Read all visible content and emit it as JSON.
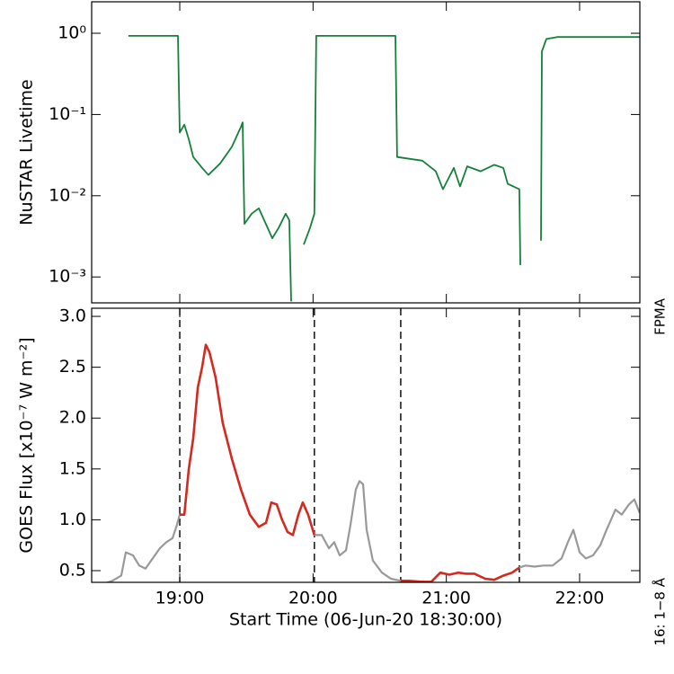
{
  "chart_data": [
    {
      "type": "line",
      "log_y": true,
      "ylabel": "NuSTAR Livetime",
      "xlim": [
        18.339,
        22.452
      ],
      "xticks": [
        19,
        20,
        21,
        22
      ],
      "ylim": [
        0.00048,
        2.44
      ],
      "yticks": [
        {
          "value": 1,
          "label": "10⁰"
        },
        {
          "value": 0.1,
          "label": "10⁻¹"
        },
        {
          "value": 0.01,
          "label": "10⁻²"
        },
        {
          "value": 0.001,
          "label": "10⁻³"
        }
      ],
      "series": [
        {
          "name": "FPMA",
          "color": "#16803a",
          "x": [
            18.615,
            18.986,
            19.0,
            19.034,
            19.067,
            19.101,
            19.168,
            19.215,
            19.303,
            19.391,
            19.458,
            19.472,
            19.485,
            19.539,
            19.593,
            19.66,
            19.694,
            19.741,
            19.795,
            19.822,
            19.836,
            19.876,
            19.93,
            19.977,
            20.01,
            20.024,
            20.618,
            20.631,
            20.82,
            20.921,
            20.975,
            21.056,
            21.103,
            21.157,
            21.258,
            21.359,
            21.427,
            21.461,
            21.548,
            21.555,
            21.629,
            21.71,
            21.717,
            21.751,
            21.832,
            22.45
          ],
          "values": [
            0.93,
            0.93,
            0.06,
            0.075,
            0.05,
            0.03,
            0.022,
            0.018,
            0.025,
            0.04,
            0.07,
            0.08,
            0.0045,
            0.006,
            0.007,
            0.004,
            0.003,
            0.004,
            0.006,
            0.005,
            0.0005,
            null,
            0.0025,
            0.004,
            0.006,
            0.93,
            0.93,
            0.03,
            0.027,
            0.02,
            0.012,
            0.022,
            0.013,
            0.023,
            0.02,
            0.024,
            0.022,
            0.014,
            0.012,
            0.0014,
            null,
            0.0028,
            0.6,
            0.85,
            0.9,
            0.9
          ]
        }
      ]
    },
    {
      "type": "line",
      "ylabel": "GOES Flux [x10⁻⁷ W m⁻²]",
      "xlabel": "Start Time (06-Jun-20 18:30:00)",
      "xlim": [
        18.339,
        22.452
      ],
      "xticks": [
        {
          "value": 19,
          "label": "19:00"
        },
        {
          "value": 20,
          "label": "20:00"
        },
        {
          "value": 21,
          "label": "21:00"
        },
        {
          "value": 22,
          "label": "22:00"
        }
      ],
      "ylim": [
        0.385,
        3.08
      ],
      "yticks": [
        0.5,
        {
          "value": 1,
          "label": "1.0"
        },
        1.5,
        {
          "value": 2,
          "label": "2.0"
        },
        2.5,
        {
          "value": 3,
          "label": "3.0"
        }
      ],
      "vlines": [
        19.0,
        20.01,
        20.658,
        21.548
      ],
      "series": [
        {
          "color": "#999999",
          "x": [
            18.339,
            18.427,
            18.494,
            18.561,
            18.595,
            18.649,
            18.696,
            18.743,
            18.797,
            18.851,
            18.899,
            18.946,
            18.979,
            19.0,
            19.034,
            19.068,
            19.101,
            19.135,
            19.168,
            19.195,
            19.222,
            19.269,
            19.323,
            19.391,
            19.458,
            19.526,
            19.593,
            19.647,
            19.687,
            19.728,
            19.768,
            19.809,
            19.849,
            19.89,
            19.923,
            19.963,
            20.01,
            20.065,
            20.119,
            20.159,
            20.2,
            20.247,
            20.281,
            20.321,
            20.348,
            20.375,
            20.402,
            20.449,
            20.517,
            20.584,
            20.658,
            20.719,
            20.82,
            20.887,
            20.955,
            21.022,
            21.09,
            21.144,
            21.211,
            21.292,
            21.359,
            21.427,
            21.494,
            21.548,
            21.595,
            21.662,
            21.73,
            21.798,
            21.865,
            21.912,
            21.953,
            22.0,
            22.047,
            22.101,
            22.155,
            22.202,
            22.269,
            22.316,
            22.37,
            22.411,
            22.45
          ],
          "values": [
            0.37,
            0.37,
            0.4,
            0.45,
            0.68,
            0.65,
            0.55,
            0.52,
            0.62,
            0.72,
            0.78,
            0.82,
            0.95,
            1.05,
            1.05,
            1.5,
            1.8,
            2.3,
            2.5,
            2.72,
            2.65,
            2.4,
            1.95,
            1.6,
            1.3,
            1.05,
            0.93,
            0.97,
            1.17,
            1.15,
            1.0,
            0.88,
            0.85,
            1.05,
            1.17,
            1.05,
            0.85,
            0.85,
            0.72,
            0.78,
            0.65,
            0.7,
            0.95,
            1.3,
            1.38,
            1.35,
            0.9,
            0.6,
            0.48,
            0.42,
            0.4,
            0.4,
            0.39,
            0.39,
            0.48,
            0.46,
            0.48,
            0.47,
            0.47,
            0.42,
            0.41,
            0.45,
            0.48,
            0.53,
            0.55,
            0.54,
            0.55,
            0.55,
            0.62,
            0.78,
            0.9,
            0.68,
            0.62,
            0.65,
            0.75,
            0.9,
            1.1,
            1.05,
            1.15,
            1.2,
            1.07
          ]
        },
        {
          "name": "16: 1−8 Å",
          "color": "#d42a20",
          "x": [
            19.0,
            19.034,
            19.068,
            19.101,
            19.135,
            19.168,
            19.195,
            19.222,
            19.269,
            19.323,
            19.391,
            19.458,
            19.526,
            19.593,
            19.647,
            19.687,
            19.728,
            19.768,
            19.809,
            19.849,
            19.89,
            19.923,
            19.963,
            20.01,
            null,
            20.658,
            20.719,
            20.82,
            20.887,
            20.955,
            21.022,
            21.09,
            21.144,
            21.211,
            21.292,
            21.359,
            21.427,
            21.494,
            21.548
          ],
          "values": [
            1.05,
            1.05,
            1.5,
            1.8,
            2.3,
            2.5,
            2.72,
            2.65,
            2.4,
            1.95,
            1.6,
            1.3,
            1.05,
            0.93,
            0.97,
            1.17,
            1.15,
            1.0,
            0.88,
            0.85,
            1.05,
            1.17,
            1.05,
            0.85,
            null,
            0.4,
            0.4,
            0.39,
            0.39,
            0.48,
            0.46,
            0.48,
            0.47,
            0.47,
            0.42,
            0.41,
            0.45,
            0.48,
            0.53
          ]
        }
      ]
    }
  ]
}
